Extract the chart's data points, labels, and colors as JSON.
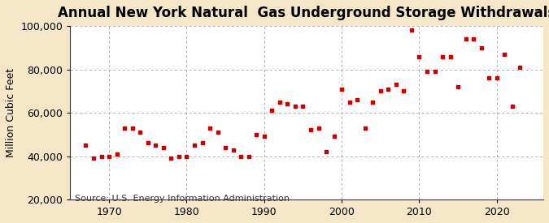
{
  "title": "Annual New York Natural  Gas Underground Storage Withdrawals",
  "ylabel": "Million Cubic Feet",
  "source": "Source: U.S. Energy Information Administration",
  "background_color": "#f5e6c8",
  "plot_background_color": "#ffffff",
  "dot_color": "#cc0000",
  "grid_color": "#aaaaaa",
  "years": [
    1967,
    1968,
    1969,
    1970,
    1971,
    1972,
    1973,
    1974,
    1975,
    1976,
    1977,
    1978,
    1979,
    1980,
    1981,
    1982,
    1983,
    1984,
    1985,
    1986,
    1987,
    1988,
    1989,
    1990,
    1991,
    1992,
    1993,
    1994,
    1995,
    1996,
    1997,
    1998,
    1999,
    2000,
    2001,
    2002,
    2003,
    2004,
    2005,
    2006,
    2007,
    2008,
    2009,
    2010,
    2011,
    2012,
    2013,
    2014,
    2015,
    2016,
    2017,
    2018,
    2019,
    2020,
    2021,
    2022,
    2023
  ],
  "values": [
    45000,
    39000,
    40000,
    40000,
    41000,
    53000,
    53000,
    51000,
    46000,
    45000,
    44000,
    39000,
    40000,
    40000,
    45000,
    46000,
    53000,
    51000,
    44000,
    43000,
    40000,
    40000,
    50000,
    49000,
    61000,
    65000,
    64000,
    63000,
    63000,
    52000,
    53000,
    42000,
    49000,
    71000,
    65000,
    66000,
    53000,
    65000,
    70000,
    71000,
    73000,
    70000,
    98000,
    86000,
    79000,
    79000,
    86000,
    86000,
    72000,
    94000,
    94000,
    90000,
    76000,
    76000,
    87000,
    63000,
    81000
  ],
  "xlim": [
    1965,
    2026
  ],
  "ylim": [
    20000,
    100000
  ],
  "yticks": [
    20000,
    40000,
    60000,
    80000,
    100000
  ],
  "xticks": [
    1970,
    1980,
    1990,
    2000,
    2010,
    2020
  ],
  "title_fontsize": 12,
  "label_fontsize": 9,
  "tick_fontsize": 9,
  "source_fontsize": 8,
  "dot_size": 12
}
